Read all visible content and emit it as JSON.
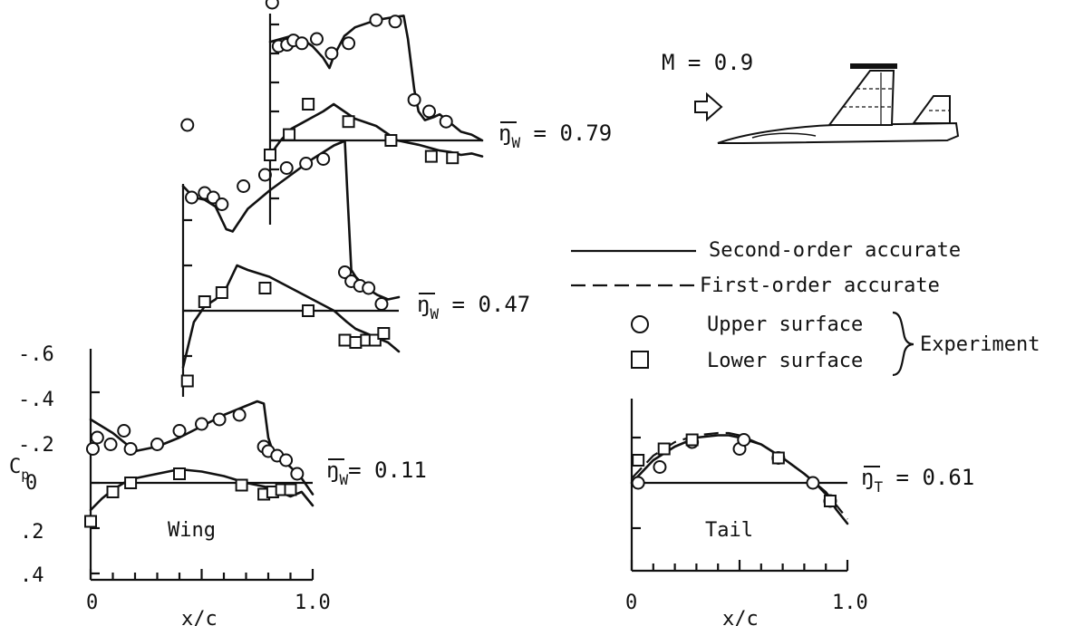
{
  "chart_data": [
    {
      "type": "line",
      "name": "wing_0.11",
      "annotation": "ŋ̅_W = 0.11",
      "panel_label": "Wing",
      "xlabel": "x/c",
      "ylabel": "Cp",
      "x_tick_labels": [
        "0",
        "1.0"
      ],
      "y_tick_labels": [
        "-.6",
        "-.4",
        "-.2",
        "0",
        ".2",
        ".4"
      ],
      "xlim": [
        0,
        1.0
      ],
      "ylim": [
        0.4,
        -0.6
      ],
      "series": [
        {
          "name": "Second-order accurate",
          "kind": "line",
          "x": [
            0,
            0.1,
            0.2,
            0.3,
            0.4,
            0.5,
            0.6,
            0.7,
            0.75,
            0.78,
            0.8,
            0.82,
            0.85,
            0.9,
            0.95,
            1.0
          ],
          "y": [
            -0.28,
            -0.22,
            -0.14,
            -0.16,
            -0.2,
            -0.25,
            -0.3,
            -0.34,
            -0.36,
            -0.35,
            -0.2,
            -0.14,
            -0.11,
            -0.07,
            -0.02,
            0.05
          ]
        },
        {
          "name": "Second-order accurate",
          "kind": "line",
          "x": [
            0,
            0.05,
            0.1,
            0.15,
            0.2,
            0.3,
            0.4,
            0.5,
            0.6,
            0.7,
            0.8,
            0.85,
            0.9,
            0.95,
            1.0
          ],
          "y": [
            0.12,
            0.07,
            0.03,
            0.0,
            -0.02,
            -0.04,
            -0.06,
            -0.05,
            -0.03,
            0.0,
            0.02,
            0.04,
            0.06,
            0.04,
            0.1
          ]
        },
        {
          "name": "Upper surface",
          "kind": "circle",
          "x": [
            0.01,
            0.03,
            0.09,
            0.15,
            0.18,
            0.3,
            0.4,
            0.5,
            0.58,
            0.67,
            0.78,
            0.8,
            0.84,
            0.88,
            0.93
          ],
          "y": [
            -0.15,
            -0.2,
            -0.17,
            -0.23,
            -0.15,
            -0.17,
            -0.23,
            -0.26,
            -0.28,
            -0.3,
            -0.16,
            -0.14,
            -0.12,
            -0.1,
            -0.04
          ]
        },
        {
          "name": "Lower surface",
          "kind": "square",
          "x": [
            0.0,
            0.1,
            0.18,
            0.4,
            0.68,
            0.78,
            0.82,
            0.86,
            0.9
          ],
          "y": [
            0.17,
            0.04,
            0.0,
            -0.04,
            0.01,
            0.05,
            0.04,
            0.03,
            0.03
          ]
        }
      ]
    },
    {
      "type": "line",
      "name": "wing_0.47",
      "annotation": "ŋ̅_W = 0.47",
      "series": [
        {
          "name": "Second-order accurate",
          "kind": "line",
          "x": [
            0,
            0.05,
            0.1,
            0.15,
            0.2,
            0.23,
            0.3,
            0.4,
            0.5,
            0.6,
            0.7,
            0.75,
            0.76,
            0.78,
            0.8,
            0.85,
            0.9,
            0.95,
            1.0
          ],
          "y": [
            -0.55,
            -0.5,
            -0.49,
            -0.46,
            -0.36,
            -0.35,
            -0.45,
            -0.53,
            -0.6,
            -0.67,
            -0.73,
            -0.75,
            -0.55,
            -0.18,
            -0.15,
            -0.1,
            -0.07,
            -0.05,
            -0.06
          ]
        },
        {
          "name": "Second-order accurate",
          "kind": "line",
          "x": [
            0,
            0.05,
            0.1,
            0.15,
            0.2,
            0.25,
            0.3,
            0.4,
            0.5,
            0.6,
            0.7,
            0.76,
            0.8,
            0.85,
            0.9,
            0.95,
            1.0
          ],
          "y": [
            0.25,
            0.05,
            -0.02,
            -0.05,
            -0.1,
            -0.2,
            -0.18,
            -0.15,
            -0.1,
            -0.05,
            0.0,
            0.05,
            0.08,
            0.1,
            0.12,
            0.14,
            0.18
          ]
        },
        {
          "name": "Upper surface",
          "kind": "circle",
          "x": [
            0.02,
            0.04,
            0.1,
            0.14,
            0.18,
            0.28,
            0.38,
            0.48,
            0.57,
            0.65,
            0.75,
            0.78,
            0.82,
            0.86,
            0.92
          ],
          "y": [
            -0.82,
            -0.5,
            -0.52,
            -0.5,
            -0.47,
            -0.55,
            -0.6,
            -0.63,
            -0.65,
            -0.67,
            -0.17,
            -0.13,
            -0.11,
            -0.1,
            -0.03
          ]
        },
        {
          "name": "Lower surface",
          "kind": "square",
          "x": [
            0.02,
            0.1,
            0.18,
            0.38,
            0.58,
            0.75,
            0.8,
            0.85,
            0.89,
            0.93
          ],
          "y": [
            0.31,
            -0.04,
            -0.08,
            -0.1,
            0.0,
            0.13,
            0.14,
            0.13,
            0.13,
            0.1
          ]
        }
      ]
    },
    {
      "type": "line",
      "name": "wing_0.79",
      "annotation": "ŋ̅_W = 0.79",
      "series": [
        {
          "name": "Second-order accurate",
          "kind": "line",
          "x": [
            0,
            0.1,
            0.15,
            0.2,
            0.25,
            0.28,
            0.3,
            0.35,
            0.4,
            0.5,
            0.58,
            0.63,
            0.65,
            0.68,
            0.7,
            0.73,
            0.77,
            0.8,
            0.85,
            0.9,
            0.95,
            1.0
          ],
          "y": [
            -0.68,
            -0.72,
            -0.7,
            -0.65,
            -0.57,
            -0.5,
            -0.58,
            -0.72,
            -0.78,
            -0.83,
            -0.85,
            -0.86,
            -0.7,
            -0.35,
            -0.2,
            -0.14,
            -0.16,
            -0.18,
            -0.12,
            -0.06,
            -0.04,
            0.0
          ]
        },
        {
          "name": "Second-order accurate",
          "kind": "line",
          "x": [
            0,
            0.05,
            0.1,
            0.15,
            0.2,
            0.25,
            0.3,
            0.35,
            0.4,
            0.5,
            0.55,
            0.6,
            0.7,
            0.75,
            0.8,
            0.85,
            0.9,
            0.95,
            1.0
          ],
          "y": [
            0.1,
            0.0,
            -0.08,
            -0.12,
            -0.16,
            -0.2,
            -0.25,
            -0.2,
            -0.15,
            -0.1,
            -0.05,
            0.0,
            0.03,
            0.05,
            0.07,
            0.08,
            0.1,
            0.09,
            0.11
          ]
        },
        {
          "name": "Upper surface",
          "kind": "circle",
          "x": [
            0.01,
            0.04,
            0.08,
            0.11,
            0.15,
            0.22,
            0.29,
            0.37,
            0.5,
            0.59,
            0.68,
            0.75,
            0.83
          ],
          "y": [
            -0.95,
            -0.65,
            -0.66,
            -0.69,
            -0.67,
            -0.7,
            -0.6,
            -0.67,
            -0.83,
            -0.82,
            -0.28,
            -0.2,
            -0.13
          ]
        },
        {
          "name": "Lower surface",
          "kind": "square",
          "x": [
            0.0,
            0.09,
            0.18,
            0.37,
            0.57,
            0.76,
            0.86
          ],
          "y": [
            0.1,
            -0.04,
            -0.25,
            -0.13,
            0.0,
            0.11,
            0.12
          ]
        }
      ]
    },
    {
      "type": "line",
      "name": "tail_0.61",
      "annotation": "ŋ̅_T = 0.61",
      "panel_label": "Tail",
      "xlabel": "x/c",
      "x_tick_labels": [
        "0",
        "1.0"
      ],
      "xlim": [
        0,
        1.0
      ],
      "ylim": [
        0.4,
        -0.6
      ],
      "series": [
        {
          "name": "Second-order accurate",
          "kind": "line",
          "x": [
            0,
            0.1,
            0.2,
            0.3,
            0.4,
            0.45,
            0.5,
            0.6,
            0.7,
            0.8,
            0.85,
            0.9,
            0.95,
            1.0
          ],
          "y": [
            0.0,
            -0.1,
            -0.16,
            -0.2,
            -0.21,
            -0.21,
            -0.2,
            -0.17,
            -0.11,
            -0.04,
            0.0,
            0.05,
            0.12,
            0.18
          ]
        },
        {
          "name": "First-order accurate",
          "kind": "dashed",
          "x": [
            0,
            0.1,
            0.2,
            0.3,
            0.4,
            0.45,
            0.5,
            0.6,
            0.7,
            0.8,
            0.85,
            0.9,
            0.95,
            1.0
          ],
          "y": [
            -0.02,
            -0.12,
            -0.18,
            -0.21,
            -0.22,
            -0.22,
            -0.21,
            -0.17,
            -0.11,
            -0.04,
            0.0,
            0.04,
            0.1,
            0.16
          ]
        },
        {
          "name": "Upper surface",
          "kind": "circle",
          "x": [
            0.03,
            0.13,
            0.28,
            0.5,
            0.52,
            0.68,
            0.84,
            0.92
          ],
          "y": [
            0.0,
            -0.07,
            -0.18,
            -0.15,
            -0.19,
            -0.11,
            0.0,
            0.08
          ]
        },
        {
          "name": "Lower surface",
          "kind": "square",
          "x": [
            0.03,
            0.15,
            0.28,
            0.68,
            0.92
          ],
          "y": [
            -0.1,
            -0.15,
            -0.19,
            -0.11,
            0.08
          ]
        }
      ]
    }
  ],
  "legend": {
    "second_order": "Second-order accurate",
    "first_order": "First-order accurate",
    "upper": "Upper surface",
    "lower": "Lower surface",
    "experiment": "Experiment"
  },
  "mach_label": "M = 0.9"
}
